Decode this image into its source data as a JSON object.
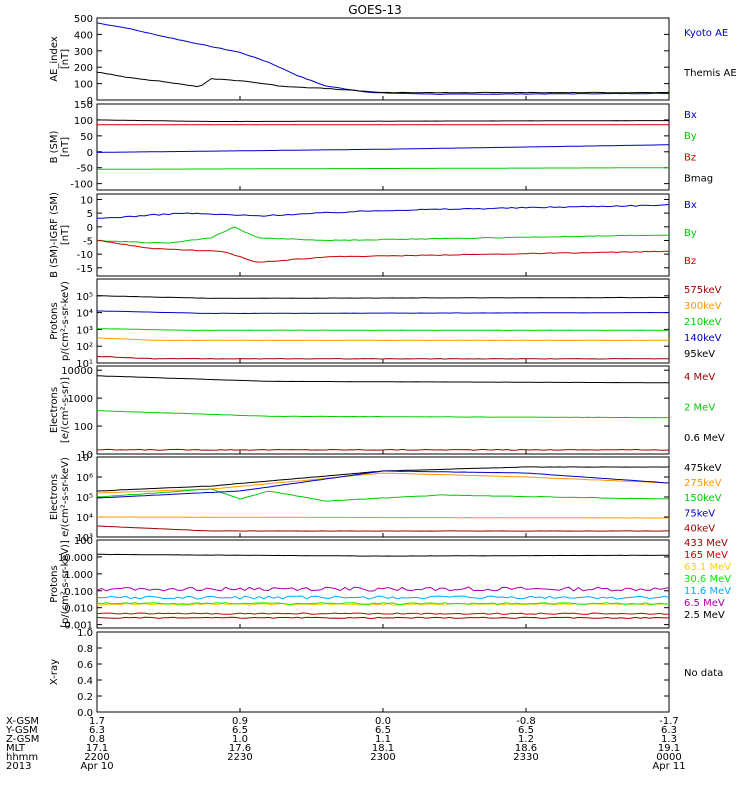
{
  "title": "GOES-13",
  "colors": {
    "black": "#000000",
    "blue": "#0000cc",
    "red": "#cc0000",
    "green": "#00cc00",
    "orange": "#ff9900",
    "darkred": "#990000",
    "cyan": "#00aaff",
    "yellow": "#ffd000",
    "lime": "#00ee00",
    "purple": "#aa00aa",
    "olive": "#999900"
  },
  "chart_data": [
    {
      "type": "line",
      "ylabel": [
        "AE_index",
        "[nT]"
      ],
      "ylim": [
        0,
        500
      ],
      "yticks": [
        "0",
        "100",
        "200",
        "300",
        "400",
        "500"
      ],
      "series": [
        {
          "name": "Kyoto AE",
          "color": "blue",
          "profile": [
            [
              0,
              470
            ],
            [
              0.05,
              440
            ],
            [
              0.1,
              400
            ],
            [
              0.18,
              340
            ],
            [
              0.25,
              290
            ],
            [
              0.3,
              230
            ],
            [
              0.35,
              150
            ],
            [
              0.4,
              85
            ],
            [
              0.48,
              45
            ],
            [
              0.6,
              35
            ],
            [
              1,
              40
            ]
          ],
          "noise": 0.02
        },
        {
          "name": "Themis AE",
          "color": "black",
          "profile": [
            [
              0,
              170
            ],
            [
              0.05,
              140
            ],
            [
              0.12,
              110
            ],
            [
              0.18,
              80
            ],
            [
              0.2,
              130
            ],
            [
              0.26,
              115
            ],
            [
              0.32,
              85
            ],
            [
              0.4,
              70
            ],
            [
              0.5,
              45
            ],
            [
              1,
              45
            ]
          ],
          "noise": 0.02
        }
      ]
    },
    {
      "type": "line",
      "ylabel": [
        "B (SM)",
        "[nT]"
      ],
      "ylim": [
        -120,
        150
      ],
      "yticks": [
        "-100",
        "-50",
        "0",
        "50",
        "100",
        "150"
      ],
      "series": [
        {
          "name": "Bx",
          "color": "blue",
          "profile": [
            [
              0,
              -2
            ],
            [
              0.5,
              8
            ],
            [
              1,
              22
            ]
          ],
          "noise": 0
        },
        {
          "name": "By",
          "color": "green",
          "profile": [
            [
              0,
              -55
            ],
            [
              1,
              -50
            ]
          ],
          "noise": 0
        },
        {
          "name": "Bz",
          "color": "red",
          "profile": [
            [
              0,
              85
            ],
            [
              1,
              85
            ]
          ],
          "noise": 0
        },
        {
          "name": "Bmag",
          "color": "black",
          "profile": [
            [
              0,
              100
            ],
            [
              0.2,
              95
            ],
            [
              1,
              98
            ]
          ],
          "noise": 0.003
        }
      ]
    },
    {
      "type": "line",
      "ylabel": [
        "B (SM)-IGRF (SM)",
        "[nT]"
      ],
      "ylim": [
        -18,
        12
      ],
      "yticks": [
        "-15",
        "-10",
        "-5",
        "0",
        "5",
        "10"
      ],
      "series": [
        {
          "name": "Bx",
          "color": "blue",
          "profile": [
            [
              0,
              3
            ],
            [
              0.15,
              5
            ],
            [
              0.28,
              4
            ],
            [
              0.5,
              6
            ],
            [
              1,
              8
            ]
          ],
          "noise": 0.05
        },
        {
          "name": "By",
          "color": "green",
          "profile": [
            [
              0,
              -5
            ],
            [
              0.12,
              -6
            ],
            [
              0.2,
              -4
            ],
            [
              0.24,
              0
            ],
            [
              0.28,
              -4
            ],
            [
              0.4,
              -5
            ],
            [
              1,
              -3
            ]
          ],
          "noise": 0.03
        },
        {
          "name": "Bz",
          "color": "red",
          "profile": [
            [
              0,
              -5
            ],
            [
              0.1,
              -8
            ],
            [
              0.22,
              -9
            ],
            [
              0.28,
              -13
            ],
            [
              0.4,
              -11
            ],
            [
              0.7,
              -10
            ],
            [
              1,
              -9
            ]
          ],
          "noise": 0.03
        }
      ]
    },
    {
      "type": "line",
      "ylabel": [
        "Protons",
        "p/(cm²-s-sr-keV)"
      ],
      "yscale": "log",
      "ylim": [
        1,
        6
      ],
      "yticks": [
        "10¹",
        "10²",
        "10³",
        "10⁴",
        "10⁵"
      ],
      "series": [
        {
          "name": "575keV",
          "color": "darkred",
          "profile": [
            [
              0,
              1.4
            ],
            [
              0.1,
              1.25
            ],
            [
              1,
              1.25
            ]
          ],
          "noise": 0.02
        },
        {
          "name": "300keV",
          "color": "orange",
          "profile": [
            [
              0,
              2.5
            ],
            [
              0.1,
              2.35
            ],
            [
              1,
              2.35
            ]
          ],
          "noise": 0.01
        },
        {
          "name": "210keV",
          "color": "green",
          "profile": [
            [
              0,
              3.05
            ],
            [
              0.15,
              2.95
            ],
            [
              1,
              2.95
            ]
          ],
          "noise": 0.01
        },
        {
          "name": "140keV",
          "color": "blue",
          "profile": [
            [
              0,
              4.1
            ],
            [
              0.2,
              3.95
            ],
            [
              1,
              4.0
            ]
          ],
          "noise": 0.01
        },
        {
          "name": "95keV",
          "color": "black",
          "profile": [
            [
              0,
              5.0
            ],
            [
              0.2,
              4.85
            ],
            [
              1,
              4.9
            ]
          ],
          "noise": 0.01
        }
      ]
    },
    {
      "type": "line",
      "ylabel": [
        "Electrons",
        "[e/(cm²-s-sr)]"
      ],
      "yscale": "log",
      "ylim": [
        1,
        4.15
      ],
      "yticks": [
        "10",
        "100",
        "1000",
        "10000"
      ],
      "series": [
        {
          "name": "4 MeV",
          "color": "darkred",
          "profile": [
            [
              0,
              1.15
            ],
            [
              1,
              1.15
            ]
          ],
          "noise": 0.03
        },
        {
          "name": "2 MeV",
          "color": "green",
          "profile": [
            [
              0,
              2.55
            ],
            [
              0.3,
              2.35
            ],
            [
              1,
              2.3
            ]
          ],
          "noise": 0.01
        },
        {
          "name": "0.6 MeV",
          "color": "black",
          "profile": [
            [
              0,
              3.8
            ],
            [
              0.3,
              3.6
            ],
            [
              1,
              3.55
            ]
          ],
          "noise": 0.005
        }
      ]
    },
    {
      "type": "line",
      "ylabel": [
        "Electrons",
        "e/(cm²-s-sr-keV)"
      ],
      "yscale": "log",
      "ylim": [
        3,
        7
      ],
      "yticks": [
        "10³",
        "10⁴",
        "10⁵",
        "10⁶",
        "10⁷"
      ],
      "series": [
        {
          "name": "475keV",
          "color": "black",
          "profile": [
            [
              0,
              5.3
            ],
            [
              0.2,
              5.55
            ],
            [
              0.5,
              6.3
            ],
            [
              0.75,
              6.5
            ],
            [
              1,
              6.5
            ]
          ],
          "noise": 0.01
        },
        {
          "name": "275keV",
          "color": "orange",
          "profile": [
            [
              0,
              5.2
            ],
            [
              0.2,
              5.4
            ],
            [
              0.5,
              6.2
            ],
            [
              0.75,
              6.0
            ],
            [
              1,
              5.7
            ]
          ],
          "noise": 0.01
        },
        {
          "name": "150keV",
          "color": "green",
          "profile": [
            [
              0,
              5.0
            ],
            [
              0.2,
              5.4
            ],
            [
              0.25,
              4.9
            ],
            [
              0.3,
              5.3
            ],
            [
              0.4,
              4.8
            ],
            [
              0.6,
              5.1
            ],
            [
              1,
              4.9
            ]
          ],
          "noise": 0.02
        },
        {
          "name": "75keV",
          "color": "blue",
          "profile": [
            [
              0,
              4.95
            ],
            [
              0.25,
              5.3
            ],
            [
              0.5,
              6.3
            ],
            [
              0.75,
              6.2
            ],
            [
              1,
              5.7
            ]
          ],
          "noise": 0.01
        },
        {
          "name": "40keV",
          "color": "darkred",
          "profile": [
            [
              0,
              3.55
            ],
            [
              0.2,
              3.3
            ],
            [
              1,
              3.3
            ]
          ],
          "noise": 0.01
        },
        {
          "name": "",
          "color": "orange",
          "profile": [
            [
              0,
              4.0
            ],
            [
              1,
              3.95
            ]
          ],
          "noise": 0.005
        }
      ]
    },
    {
      "type": "line",
      "ylabel": [
        "Protons",
        "[p/(cm²-s-sr-keV)]"
      ],
      "yscale": "log",
      "ylim": [
        -3.2,
        2
      ],
      "yticks": [
        "0.001",
        "0.010",
        "0.100",
        "1.000",
        "10.000",
        "100"
      ],
      "series": [
        {
          "name": "433 MeV",
          "color": "darkred",
          "profile": [
            [
              0,
              -2.6
            ],
            [
              1,
              -2.6
            ]
          ],
          "noise": 0.04
        },
        {
          "name": "165 MeV",
          "color": "red",
          "profile": [
            [
              0,
              -2.35
            ],
            [
              1,
              -2.35
            ]
          ],
          "noise": 0.05
        },
        {
          "name": "63.1 MeV",
          "color": "yellow",
          "profile": [
            [
              0,
              -1.8
            ],
            [
              1,
              -1.8
            ]
          ],
          "noise": 0.06
        },
        {
          "name": "30.6 MeV",
          "color": "lime",
          "profile": [
            [
              0,
              -1.75
            ],
            [
              1,
              -1.75
            ]
          ],
          "noise": 0.06
        },
        {
          "name": "11.6 MeV",
          "color": "cyan",
          "profile": [
            [
              0,
              -1.4
            ],
            [
              1,
              -1.4
            ]
          ],
          "noise": 0.12
        },
        {
          "name": "6.5 MeV",
          "color": "purple",
          "profile": [
            [
              0,
              -0.9
            ],
            [
              1,
              -0.9
            ]
          ],
          "noise": 0.15
        },
        {
          "name": "2.5 MeV",
          "color": "black",
          "profile": [
            [
              0,
              1.15
            ],
            [
              0.5,
              1.05
            ],
            [
              1,
              1.1
            ]
          ],
          "noise": 0.01
        }
      ]
    },
    {
      "type": "line",
      "ylabel": [
        "X-ray",
        ""
      ],
      "ylim": [
        0,
        1
      ],
      "yticks": [
        "0.0",
        "0.2",
        "0.4",
        "0.6",
        "0.8",
        "1.0"
      ],
      "note": "No data",
      "series": []
    }
  ],
  "footer": {
    "labels": [
      "X-GSM",
      "Y-GSM",
      "Z-GSM",
      "MLT",
      "hhmm",
      "2013"
    ],
    "columns": [
      [
        "1.7",
        "6.3",
        "0.8",
        "17.1",
        "2200",
        "Apr 10"
      ],
      [
        "0.9",
        "6.5",
        "1.0",
        "17.6",
        "2230",
        ""
      ],
      [
        "0.0",
        "6.5",
        "1.1",
        "18.1",
        "2300",
        ""
      ],
      [
        "-0.8",
        "6.5",
        "1.2",
        "18.6",
        "2330",
        ""
      ],
      [
        "-1.7",
        "6.3",
        "1.3",
        "19.1",
        "0000",
        "Apr 11"
      ]
    ]
  }
}
